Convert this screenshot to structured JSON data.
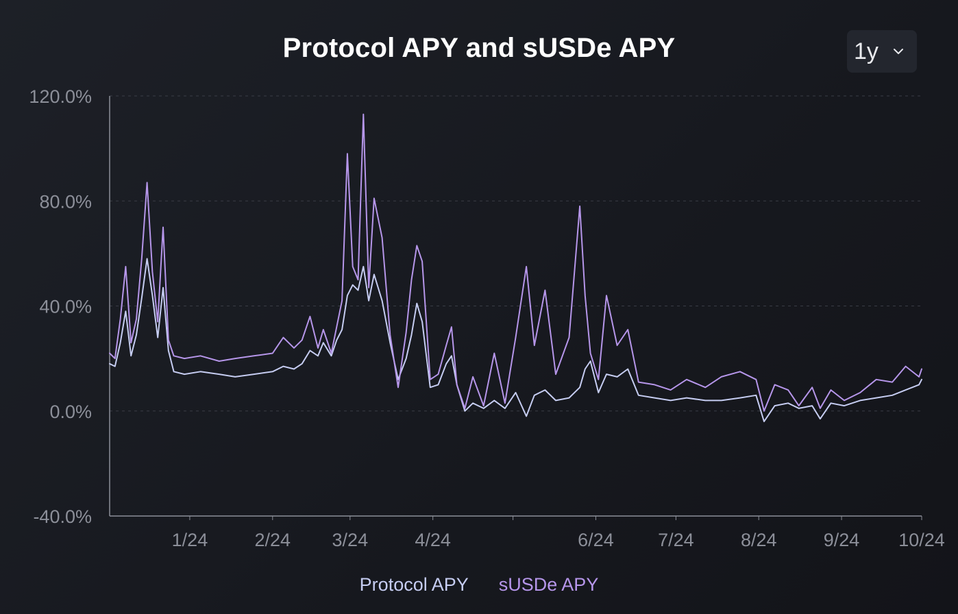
{
  "header": {
    "title": "Protocol APY and sUSDe APY"
  },
  "range_selector": {
    "value": "1y",
    "icon": "chevron-down-icon"
  },
  "colors": {
    "protocol": "#c6cdf2",
    "susde": "#b696ea",
    "axis": "#8c8f99",
    "grid": "#3a3d46"
  },
  "chart_data": {
    "type": "line",
    "title": "Protocol APY and sUSDe APY",
    "xlabel": "",
    "ylabel": "",
    "ylim": [
      -40,
      120
    ],
    "yticks": [
      -40,
      0,
      40,
      80,
      120
    ],
    "ytick_labels": [
      "-40.0%",
      "0.0%",
      "40.0%",
      "80.0%",
      "120.0%"
    ],
    "xlim": [
      "2023-12-02",
      "2024-10-01"
    ],
    "xticks": [
      "2024-01-01",
      "2024-02-01",
      "2024-03-01",
      "2024-04-01",
      "2024-05-01",
      "2024-06-01",
      "2024-07-01",
      "2024-08-01",
      "2024-09-01",
      "2024-10-01"
    ],
    "xtick_labels": [
      "1/24",
      "2/24",
      "3/24",
      "4/24",
      "",
      "6/24",
      "7/24",
      "8/24",
      "9/24",
      "10/24"
    ],
    "grid": "horizontal dashed",
    "legend": "bottom-center",
    "series": [
      {
        "name": "Protocol APY",
        "points": [
          [
            "2023-12-02",
            18
          ],
          [
            "2023-12-04",
            17
          ],
          [
            "2023-12-06",
            26
          ],
          [
            "2023-12-08",
            38
          ],
          [
            "2023-12-10",
            21
          ],
          [
            "2023-12-12",
            29
          ],
          [
            "2023-12-14",
            43
          ],
          [
            "2023-12-16",
            58
          ],
          [
            "2023-12-18",
            44
          ],
          [
            "2023-12-20",
            28
          ],
          [
            "2023-12-22",
            47
          ],
          [
            "2023-12-24",
            23
          ],
          [
            "2023-12-26",
            15
          ],
          [
            "2023-12-30",
            14
          ],
          [
            "2024-01-05",
            15
          ],
          [
            "2024-01-12",
            14
          ],
          [
            "2024-01-18",
            13
          ],
          [
            "2024-01-25",
            14
          ],
          [
            "2024-02-01",
            15
          ],
          [
            "2024-02-05",
            17
          ],
          [
            "2024-02-09",
            16
          ],
          [
            "2024-02-12",
            18
          ],
          [
            "2024-02-15",
            23
          ],
          [
            "2024-02-18",
            21
          ],
          [
            "2024-02-20",
            26
          ],
          [
            "2024-02-23",
            21
          ],
          [
            "2024-02-25",
            27
          ],
          [
            "2024-02-27",
            31
          ],
          [
            "2024-02-29",
            44
          ],
          [
            "2024-03-02",
            48
          ],
          [
            "2024-03-04",
            46
          ],
          [
            "2024-03-06",
            55
          ],
          [
            "2024-03-08",
            42
          ],
          [
            "2024-03-10",
            52
          ],
          [
            "2024-03-13",
            42
          ],
          [
            "2024-03-16",
            26
          ],
          [
            "2024-03-19",
            12
          ],
          [
            "2024-03-22",
            20
          ],
          [
            "2024-03-24",
            29
          ],
          [
            "2024-03-26",
            41
          ],
          [
            "2024-03-28",
            34
          ],
          [
            "2024-03-31",
            9
          ],
          [
            "2024-04-03",
            10
          ],
          [
            "2024-04-06",
            18
          ],
          [
            "2024-04-08",
            21
          ],
          [
            "2024-04-10",
            10
          ],
          [
            "2024-04-13",
            0
          ],
          [
            "2024-04-16",
            3
          ],
          [
            "2024-04-20",
            1
          ],
          [
            "2024-04-24",
            4
          ],
          [
            "2024-04-28",
            1
          ],
          [
            "2024-05-02",
            7
          ],
          [
            "2024-05-06",
            -2
          ],
          [
            "2024-05-09",
            6
          ],
          [
            "2024-05-13",
            8
          ],
          [
            "2024-05-17",
            4
          ],
          [
            "2024-05-22",
            5
          ],
          [
            "2024-05-26",
            9
          ],
          [
            "2024-05-28",
            16
          ],
          [
            "2024-05-30",
            19
          ],
          [
            "2024-06-02",
            7
          ],
          [
            "2024-06-05",
            14
          ],
          [
            "2024-06-09",
            13
          ],
          [
            "2024-06-13",
            16
          ],
          [
            "2024-06-17",
            6
          ],
          [
            "2024-06-23",
            5
          ],
          [
            "2024-06-29",
            4
          ],
          [
            "2024-07-05",
            5
          ],
          [
            "2024-07-12",
            4
          ],
          [
            "2024-07-18",
            4
          ],
          [
            "2024-07-25",
            5
          ],
          [
            "2024-07-31",
            6
          ],
          [
            "2024-08-03",
            -4
          ],
          [
            "2024-08-07",
            2
          ],
          [
            "2024-08-12",
            3
          ],
          [
            "2024-08-16",
            1
          ],
          [
            "2024-08-21",
            2
          ],
          [
            "2024-08-24",
            -3
          ],
          [
            "2024-08-28",
            3
          ],
          [
            "2024-09-02",
            2
          ],
          [
            "2024-09-08",
            4
          ],
          [
            "2024-09-14",
            5
          ],
          [
            "2024-09-20",
            6
          ],
          [
            "2024-09-25",
            8
          ],
          [
            "2024-09-30",
            10
          ],
          [
            "2024-10-01",
            12
          ]
        ]
      },
      {
        "name": "sUSDe APY",
        "points": [
          [
            "2023-12-02",
            22
          ],
          [
            "2023-12-04",
            20
          ],
          [
            "2023-12-06",
            35
          ],
          [
            "2023-12-08",
            55
          ],
          [
            "2023-12-10",
            26
          ],
          [
            "2023-12-12",
            35
          ],
          [
            "2023-12-14",
            58
          ],
          [
            "2023-12-16",
            87
          ],
          [
            "2023-12-18",
            53
          ],
          [
            "2023-12-20",
            34
          ],
          [
            "2023-12-22",
            70
          ],
          [
            "2023-12-24",
            27
          ],
          [
            "2023-12-26",
            21
          ],
          [
            "2023-12-30",
            20
          ],
          [
            "2024-01-05",
            21
          ],
          [
            "2024-01-12",
            19
          ],
          [
            "2024-01-18",
            20
          ],
          [
            "2024-01-25",
            21
          ],
          [
            "2024-02-01",
            22
          ],
          [
            "2024-02-05",
            28
          ],
          [
            "2024-02-09",
            24
          ],
          [
            "2024-02-12",
            27
          ],
          [
            "2024-02-15",
            36
          ],
          [
            "2024-02-18",
            24
          ],
          [
            "2024-02-20",
            31
          ],
          [
            "2024-02-23",
            22
          ],
          [
            "2024-02-25",
            32
          ],
          [
            "2024-02-27",
            42
          ],
          [
            "2024-02-29",
            98
          ],
          [
            "2024-03-02",
            55
          ],
          [
            "2024-03-04",
            50
          ],
          [
            "2024-03-06",
            113
          ],
          [
            "2024-03-08",
            47
          ],
          [
            "2024-03-10",
            81
          ],
          [
            "2024-03-13",
            66
          ],
          [
            "2024-03-16",
            29
          ],
          [
            "2024-03-19",
            9
          ],
          [
            "2024-03-22",
            30
          ],
          [
            "2024-03-24",
            50
          ],
          [
            "2024-03-26",
            63
          ],
          [
            "2024-03-28",
            57
          ],
          [
            "2024-03-31",
            12
          ],
          [
            "2024-04-03",
            14
          ],
          [
            "2024-04-06",
            25
          ],
          [
            "2024-04-08",
            32
          ],
          [
            "2024-04-10",
            10
          ],
          [
            "2024-04-13",
            1
          ],
          [
            "2024-04-16",
            13
          ],
          [
            "2024-04-20",
            2
          ],
          [
            "2024-04-24",
            22
          ],
          [
            "2024-04-28",
            3
          ],
          [
            "2024-05-02",
            28
          ],
          [
            "2024-05-06",
            55
          ],
          [
            "2024-05-09",
            25
          ],
          [
            "2024-05-13",
            46
          ],
          [
            "2024-05-17",
            14
          ],
          [
            "2024-05-22",
            28
          ],
          [
            "2024-05-26",
            78
          ],
          [
            "2024-05-28",
            44
          ],
          [
            "2024-05-30",
            22
          ],
          [
            "2024-06-02",
            12
          ],
          [
            "2024-06-05",
            44
          ],
          [
            "2024-06-09",
            25
          ],
          [
            "2024-06-13",
            31
          ],
          [
            "2024-06-17",
            11
          ],
          [
            "2024-06-23",
            10
          ],
          [
            "2024-06-29",
            8
          ],
          [
            "2024-07-05",
            12
          ],
          [
            "2024-07-12",
            9
          ],
          [
            "2024-07-18",
            13
          ],
          [
            "2024-07-25",
            15
          ],
          [
            "2024-07-31",
            12
          ],
          [
            "2024-08-03",
            0
          ],
          [
            "2024-08-07",
            10
          ],
          [
            "2024-08-12",
            8
          ],
          [
            "2024-08-16",
            2
          ],
          [
            "2024-08-21",
            9
          ],
          [
            "2024-08-24",
            1
          ],
          [
            "2024-08-28",
            8
          ],
          [
            "2024-09-02",
            4
          ],
          [
            "2024-09-08",
            7
          ],
          [
            "2024-09-14",
            12
          ],
          [
            "2024-09-20",
            11
          ],
          [
            "2024-09-25",
            17
          ],
          [
            "2024-09-30",
            13
          ],
          [
            "2024-10-01",
            16
          ]
        ]
      }
    ]
  }
}
